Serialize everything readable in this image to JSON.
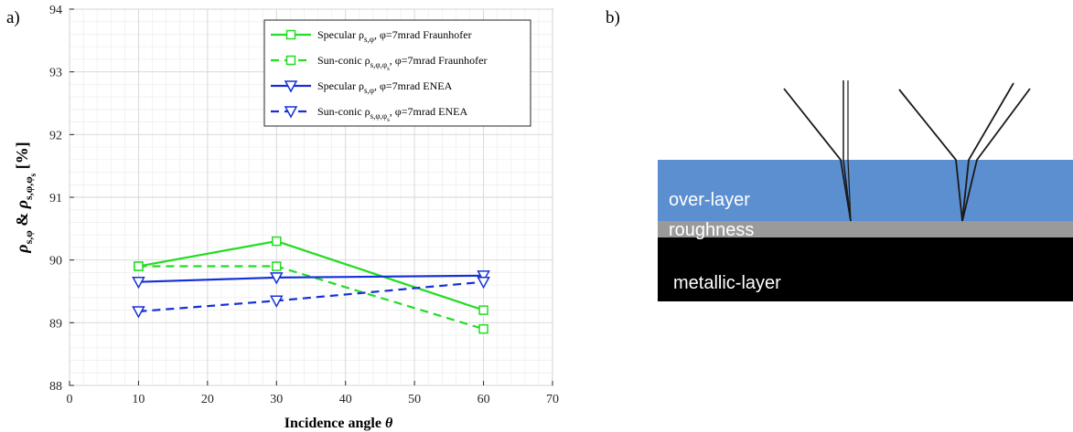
{
  "panels": {
    "a": "a)",
    "b": "b)"
  },
  "chart_data": {
    "type": "line",
    "xlabel": "Incidence angle θ",
    "ylabel": "ρ_{s,φ} & ρ_{s,φ,φ_s} [%]",
    "xlim": [
      0,
      70
    ],
    "ylim": [
      88,
      94
    ],
    "xticks": [
      0,
      10,
      20,
      30,
      40,
      50,
      60,
      70
    ],
    "yticks": [
      88,
      89,
      90,
      91,
      92,
      93,
      94
    ],
    "grid": true,
    "minor_grid": true,
    "legend_position": "top-right",
    "x": [
      10,
      30,
      60
    ],
    "series": [
      {
        "name": "Specular ρ_{s,φ}, φ=7mrad Fraunhofer",
        "values": [
          89.9,
          90.3,
          89.2
        ],
        "color": "#22dd22",
        "dash": "solid",
        "marker": "square"
      },
      {
        "name": "Sun-conic ρ_{s,φ,φ_s}, φ=7mrad Fraunhofer",
        "values": [
          89.9,
          89.9,
          88.9
        ],
        "color": "#22dd22",
        "dash": "dashed",
        "marker": "square"
      },
      {
        "name": "Specular ρ_{s,φ}, φ=7mrad ENEA",
        "values": [
          89.65,
          89.72,
          89.75
        ],
        "color": "#1530d8",
        "dash": "solid",
        "marker": "triangle-down"
      },
      {
        "name": "Sun-conic ρ_{s,φ,φ_s}, φ=7mrad ENEA",
        "values": [
          89.18,
          89.35,
          89.65
        ],
        "color": "#1530d8",
        "dash": "dashed",
        "marker": "triangle-down"
      }
    ]
  },
  "diagram": {
    "layers": [
      {
        "label": "over-layer",
        "color": "#5b8fd0"
      },
      {
        "label": "roughness",
        "color": "#9a9a9a"
      },
      {
        "label": "metallic-layer",
        "color": "#000000"
      }
    ]
  }
}
